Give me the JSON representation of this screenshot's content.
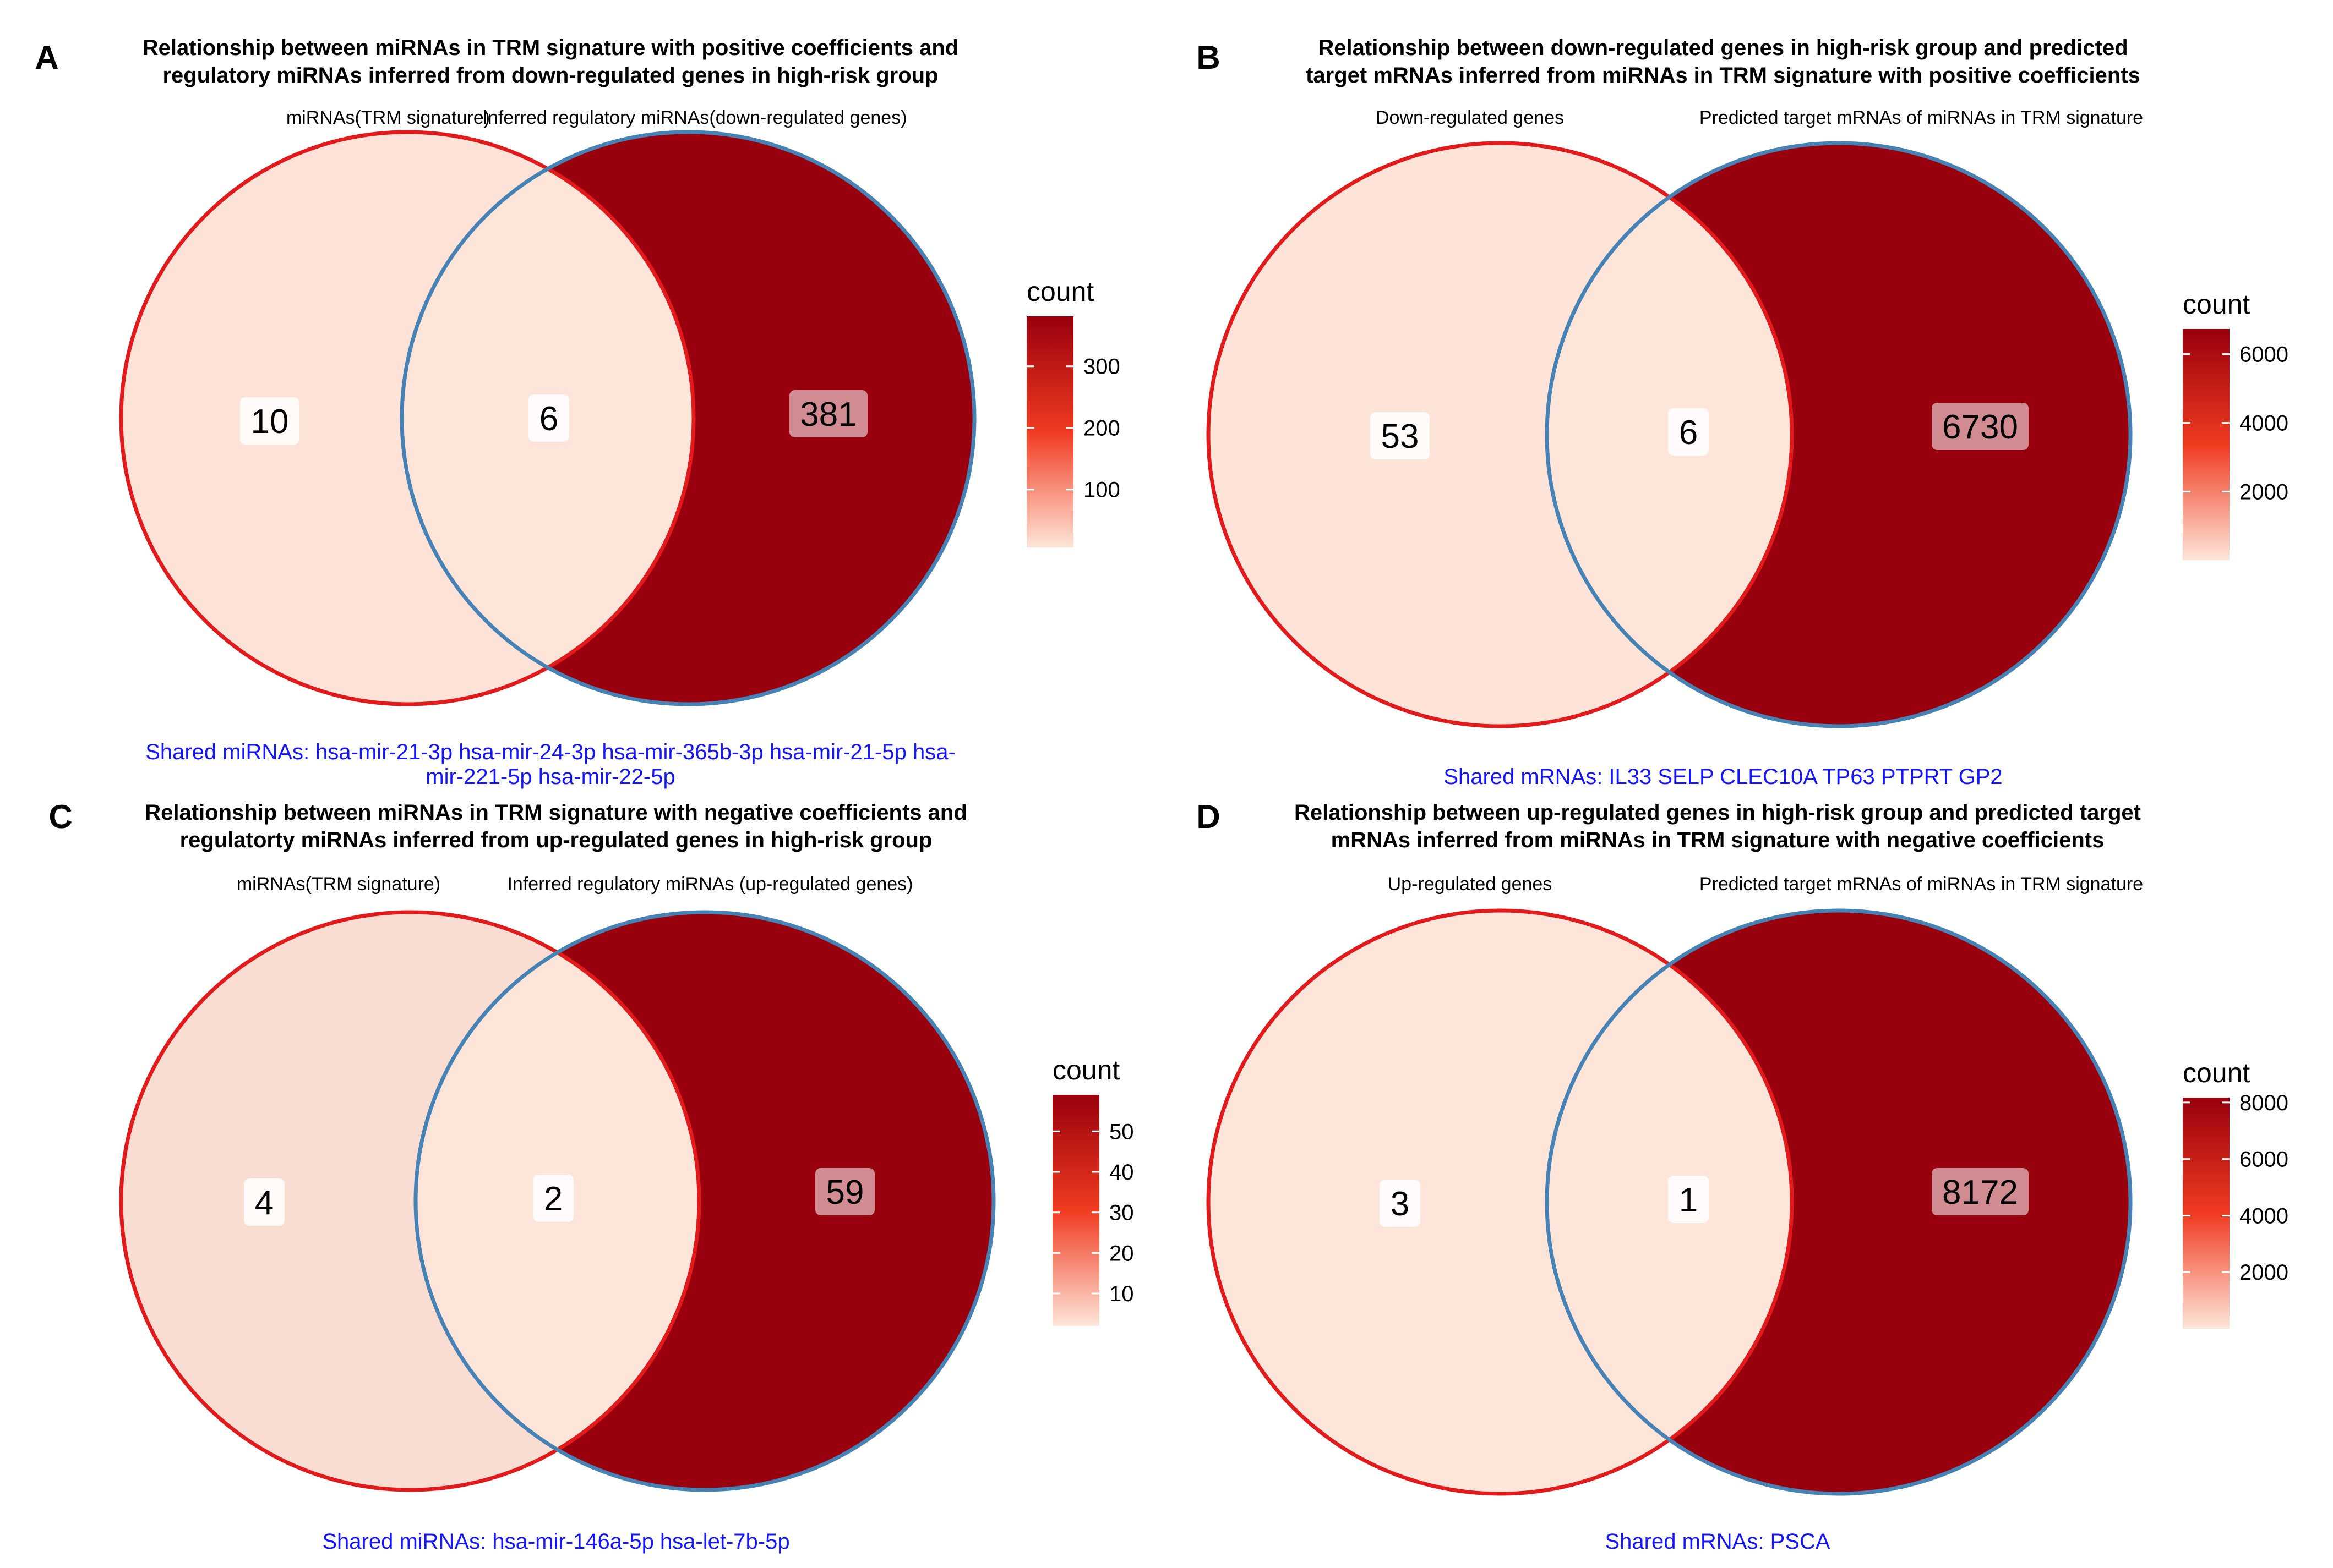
{
  "colors": {
    "outline_a": "#e31a1c",
    "outline_b": "#4682b4",
    "low": "#fee5d9",
    "high": "#99000d",
    "shared_text": "#1414ff"
  },
  "panels": [
    {
      "letter": "A",
      "title_lines": [
        "Relationship between miRNAs in TRM signature with positive coefficients and",
        "regulatory miRNAs inferred from down-regulated genes in high-risk group"
      ],
      "set_a_label": "miRNAs(TRM signature)",
      "set_b_label": "Inferred regulatory miRNAs(down-regulated genes)",
      "counts": {
        "a_only": 10,
        "shared": 6,
        "b_only": 381
      },
      "legend": {
        "title": "count",
        "ticks": [
          100,
          200,
          300
        ],
        "min": 6,
        "max": 381
      },
      "shared_lines": [
        "Shared miRNAs: hsa-mir-21-3p hsa-mir-24-3p hsa-mir-365b-3p hsa-mir-21-5p hsa-",
        "mir-221-5p hsa-mir-22-5p"
      ]
    },
    {
      "letter": "B",
      "title_lines": [
        "Relationship between down-regulated genes in high-risk group and predicted",
        "target mRNAs inferred from miRNAs in TRM signature with positive coefficients"
      ],
      "set_a_label": "Down-regulated genes",
      "set_b_label": "Predicted target mRNAs of miRNAs in TRM signature",
      "counts": {
        "a_only": 53,
        "shared": 6,
        "b_only": 6730
      },
      "legend": {
        "title": "count",
        "ticks": [
          2000,
          4000,
          6000
        ],
        "min": 6,
        "max": 6730
      },
      "shared_lines": [
        "Shared mRNAs: IL33 SELP CLEC10A TP63 PTPRT GP2"
      ]
    },
    {
      "letter": "C",
      "title_lines": [
        "Relationship between miRNAs in TRM signature with negative coefficients and",
        "regulatorty miRNAs inferred from up-regulated genes in high-risk group"
      ],
      "set_a_label": "miRNAs(TRM signature)",
      "set_b_label": "Inferred regulatory miRNAs (up-regulated genes)",
      "counts": {
        "a_only": 4,
        "shared": 2,
        "b_only": 59
      },
      "legend": {
        "title": "count",
        "ticks": [
          10,
          20,
          30,
          40,
          50
        ],
        "min": 2,
        "max": 59
      },
      "shared_lines": [
        "Shared miRNAs: hsa-mir-146a-5p hsa-let-7b-5p"
      ]
    },
    {
      "letter": "D",
      "title_lines": [
        "Relationship between up-regulated genes in high-risk group and predicted target",
        "mRNAs inferred from miRNAs in TRM signature with negative coefficients"
      ],
      "set_a_label": "Up-regulated genes",
      "set_b_label": "Predicted target mRNAs of miRNAs in TRM signature",
      "counts": {
        "a_only": 3,
        "shared": 1,
        "b_only": 8172
      },
      "legend": {
        "title": "count",
        "ticks": [
          2000,
          4000,
          6000,
          8000
        ],
        "min": 1,
        "max": 8172
      },
      "shared_lines": [
        "Shared mRNAs: PSCA"
      ]
    }
  ]
}
